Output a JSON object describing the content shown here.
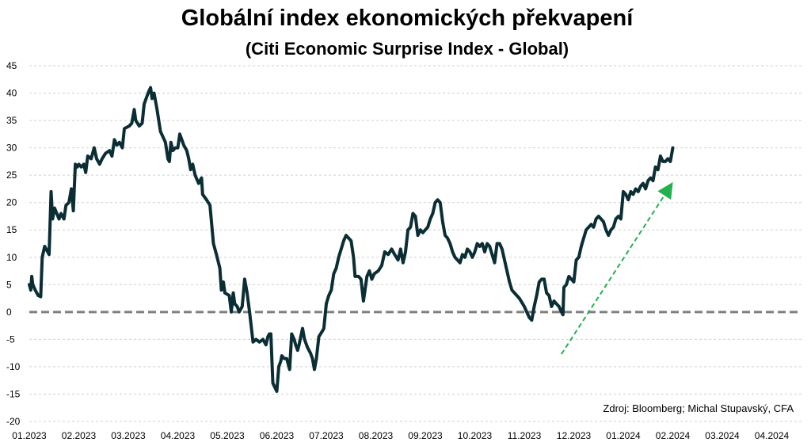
{
  "chart_data": {
    "type": "line",
    "title": "Globální index ekonomických překvapení",
    "subtitle": "(Citi Economic Surprise Index - Global)",
    "source": "Zdroj: Bloomberg; Michal Stupavský, CFA",
    "xlabel": "",
    "ylabel": "",
    "ylim": [
      -20,
      45
    ],
    "yticks": [
      -20,
      -15,
      -10,
      -5,
      0,
      5,
      10,
      15,
      20,
      25,
      30,
      35,
      40,
      45
    ],
    "xlim": [
      0,
      15.6
    ],
    "xticks": [
      {
        "x": 0,
        "label": "01.2023"
      },
      {
        "x": 1,
        "label": "02.2023"
      },
      {
        "x": 2,
        "label": "03.2023"
      },
      {
        "x": 3,
        "label": "04.2023"
      },
      {
        "x": 4,
        "label": "05.2023"
      },
      {
        "x": 5,
        "label": "06.2023"
      },
      {
        "x": 6,
        "label": "07.2023"
      },
      {
        "x": 7,
        "label": "08.2023"
      },
      {
        "x": 8,
        "label": "09.2023"
      },
      {
        "x": 9,
        "label": "10.2023"
      },
      {
        "x": 10,
        "label": "11.2023"
      },
      {
        "x": 11,
        "label": "12.2023"
      },
      {
        "x": 12,
        "label": "01.2024"
      },
      {
        "x": 13,
        "label": "02.2024"
      },
      {
        "x": 14,
        "label": "03.2024"
      },
      {
        "x": 15,
        "label": "04.2024"
      }
    ],
    "grid": true,
    "series": [
      {
        "color": "#0b2e35",
        "points": [
          [
            0.0,
            5.0
          ],
          [
            0.03,
            4.0
          ],
          [
            0.05,
            6.5
          ],
          [
            0.07,
            5.0
          ],
          [
            0.12,
            4.0
          ],
          [
            0.18,
            3.0
          ],
          [
            0.23,
            2.8
          ],
          [
            0.26,
            10.0
          ],
          [
            0.31,
            12.0
          ],
          [
            0.4,
            10.5
          ],
          [
            0.44,
            22.0
          ],
          [
            0.47,
            17.0
          ],
          [
            0.51,
            19.0
          ],
          [
            0.6,
            17.0
          ],
          [
            0.64,
            18.0
          ],
          [
            0.7,
            17.0
          ],
          [
            0.74,
            19.5
          ],
          [
            0.8,
            20.0
          ],
          [
            0.85,
            22.5
          ],
          [
            0.89,
            18.5
          ],
          [
            0.93,
            27.0
          ],
          [
            0.97,
            26.5
          ],
          [
            1.0,
            27.0
          ],
          [
            1.05,
            26.5
          ],
          [
            1.1,
            27.0
          ],
          [
            1.14,
            25.5
          ],
          [
            1.18,
            28.5
          ],
          [
            1.25,
            28.0
          ],
          [
            1.31,
            30.0
          ],
          [
            1.36,
            28.0
          ],
          [
            1.42,
            27.0
          ],
          [
            1.47,
            28.0
          ],
          [
            1.54,
            29.0
          ],
          [
            1.62,
            29.5
          ],
          [
            1.67,
            28.5
          ],
          [
            1.72,
            31.5
          ],
          [
            1.77,
            30.5
          ],
          [
            1.82,
            31.0
          ],
          [
            1.88,
            30.0
          ],
          [
            1.92,
            33.5
          ],
          [
            2.02,
            34.0
          ],
          [
            2.07,
            34.5
          ],
          [
            2.12,
            37.0
          ],
          [
            2.15,
            35.0
          ],
          [
            2.22,
            34.0
          ],
          [
            2.28,
            34.5
          ],
          [
            2.32,
            38.0
          ],
          [
            2.4,
            40.0
          ],
          [
            2.45,
            41.0
          ],
          [
            2.48,
            39.0
          ],
          [
            2.52,
            40.0
          ],
          [
            2.58,
            37.0
          ],
          [
            2.65,
            33.0
          ],
          [
            2.75,
            31.0
          ],
          [
            2.8,
            28.0
          ],
          [
            2.83,
            27.5
          ],
          [
            2.86,
            31.0
          ],
          [
            2.9,
            29.5
          ],
          [
            2.95,
            30.0
          ],
          [
            3.0,
            30.0
          ],
          [
            3.04,
            32.5
          ],
          [
            3.12,
            30.5
          ],
          [
            3.18,
            29.5
          ],
          [
            3.22,
            28.0
          ],
          [
            3.26,
            26.0
          ],
          [
            3.3,
            27.0
          ],
          [
            3.35,
            25.0
          ],
          [
            3.42,
            23.5
          ],
          [
            3.48,
            24.5
          ],
          [
            3.5,
            21.5
          ],
          [
            3.58,
            20.5
          ],
          [
            3.65,
            19.5
          ],
          [
            3.72,
            12.5
          ],
          [
            3.78,
            10.5
          ],
          [
            3.85,
            8.0
          ],
          [
            3.88,
            4.0
          ],
          [
            3.92,
            5.5
          ],
          [
            3.95,
            3.5
          ],
          [
            4.04,
            3.0
          ],
          [
            4.08,
            0.0
          ],
          [
            4.12,
            3.5
          ],
          [
            4.15,
            1.5
          ],
          [
            4.2,
            1.0
          ],
          [
            4.24,
            0.0
          ],
          [
            4.3,
            1.0
          ],
          [
            4.35,
            6.0
          ],
          [
            4.4,
            3.5
          ],
          [
            4.45,
            0.0
          ],
          [
            4.52,
            -5.5
          ],
          [
            4.58,
            -5.0
          ],
          [
            4.65,
            -5.5
          ],
          [
            4.72,
            -5.0
          ],
          [
            4.78,
            -6.0
          ],
          [
            4.82,
            -4.5
          ],
          [
            4.85,
            -4.0
          ],
          [
            4.88,
            -4.0
          ],
          [
            4.92,
            -13.0
          ],
          [
            5.0,
            -14.5
          ],
          [
            5.04,
            -10.0
          ],
          [
            5.08,
            -9.0
          ],
          [
            5.1,
            -8.0
          ],
          [
            5.15,
            -8.5
          ],
          [
            5.2,
            -8.5
          ],
          [
            5.26,
            -10.5
          ],
          [
            5.3,
            -4.0
          ],
          [
            5.35,
            -5.0
          ],
          [
            5.38,
            -6.0
          ],
          [
            5.42,
            -7.0
          ],
          [
            5.45,
            -6.0
          ],
          [
            5.52,
            -3.0
          ],
          [
            5.56,
            -5.0
          ],
          [
            5.62,
            -6.5
          ],
          [
            5.68,
            -7.5
          ],
          [
            5.72,
            -8.5
          ],
          [
            5.76,
            -10.5
          ],
          [
            5.8,
            -8.5
          ],
          [
            5.85,
            -4.5
          ],
          [
            5.92,
            -3.5
          ],
          [
            5.95,
            -3.0
          ],
          [
            6.0,
            1.5
          ],
          [
            6.05,
            3.0
          ],
          [
            6.1,
            4.0
          ],
          [
            6.15,
            7.0
          ],
          [
            6.2,
            8.0
          ],
          [
            6.25,
            10.0
          ],
          [
            6.3,
            11.5
          ],
          [
            6.35,
            13.0
          ],
          [
            6.4,
            14.0
          ],
          [
            6.5,
            13.0
          ],
          [
            6.55,
            10.0
          ],
          [
            6.58,
            6.5
          ],
          [
            6.65,
            6.5
          ],
          [
            6.7,
            6.0
          ],
          [
            6.75,
            2.0
          ],
          [
            6.82,
            6.5
          ],
          [
            6.87,
            7.5
          ],
          [
            6.92,
            6.0
          ],
          [
            6.97,
            7.0
          ],
          [
            7.05,
            7.5
          ],
          [
            7.12,
            8.5
          ],
          [
            7.18,
            11.0
          ],
          [
            7.25,
            10.5
          ],
          [
            7.32,
            11.5
          ],
          [
            7.38,
            10.5
          ],
          [
            7.45,
            9.5
          ],
          [
            7.5,
            11.5
          ],
          [
            7.55,
            9.0
          ],
          [
            7.6,
            11.0
          ],
          [
            7.65,
            15.0
          ],
          [
            7.7,
            15.5
          ],
          [
            7.75,
            18.0
          ],
          [
            7.8,
            17.5
          ],
          [
            7.85,
            14.0
          ],
          [
            7.9,
            15.0
          ],
          [
            7.95,
            14.5
          ],
          [
            8.0,
            15.0
          ],
          [
            8.05,
            15.5
          ],
          [
            8.1,
            17.0
          ],
          [
            8.15,
            18.0
          ],
          [
            8.2,
            20.0
          ],
          [
            8.25,
            20.5
          ],
          [
            8.3,
            20.0
          ],
          [
            8.35,
            16.5
          ],
          [
            8.4,
            14.0
          ],
          [
            8.45,
            13.5
          ],
          [
            8.5,
            12.5
          ],
          [
            8.55,
            11.0
          ],
          [
            8.6,
            10.0
          ],
          [
            8.65,
            9.5
          ],
          [
            8.7,
            9.0
          ],
          [
            8.75,
            10.5
          ],
          [
            8.8,
            10.0
          ],
          [
            8.85,
            11.5
          ],
          [
            8.9,
            11.0
          ],
          [
            8.95,
            10.0
          ],
          [
            9.0,
            11.0
          ],
          [
            9.05,
            12.5
          ],
          [
            9.1,
            12.0
          ],
          [
            9.15,
            12.5
          ],
          [
            9.2,
            11.0
          ],
          [
            9.25,
            12.5
          ],
          [
            9.3,
            12.0
          ],
          [
            9.35,
            10.5
          ],
          [
            9.4,
            9.0
          ],
          [
            9.45,
            12.5
          ],
          [
            9.5,
            12.5
          ],
          [
            9.55,
            11.5
          ],
          [
            9.6,
            9.5
          ],
          [
            9.7,
            5.5
          ],
          [
            9.75,
            4.0
          ],
          [
            9.8,
            3.5
          ],
          [
            9.85,
            3.0
          ],
          [
            9.9,
            2.5
          ],
          [
            10.0,
            1.0
          ],
          [
            10.05,
            0.0
          ],
          [
            10.1,
            -1.0
          ],
          [
            10.15,
            -1.5
          ],
          [
            10.2,
            1.0
          ],
          [
            10.25,
            3.0
          ],
          [
            10.3,
            5.5
          ],
          [
            10.35,
            6.0
          ],
          [
            10.4,
            6.0
          ],
          [
            10.45,
            3.5
          ],
          [
            10.5,
            3.0
          ],
          [
            10.55,
            1.0
          ],
          [
            10.6,
            2.0
          ],
          [
            10.65,
            1.5
          ],
          [
            10.7,
            1.0
          ],
          [
            10.75,
            0.0
          ],
          [
            10.78,
            -0.5
          ],
          [
            10.8,
            4.5
          ],
          [
            10.85,
            5.0
          ],
          [
            10.9,
            6.5
          ],
          [
            11.0,
            5.5
          ],
          [
            11.05,
            9.5
          ],
          [
            11.1,
            10.0
          ],
          [
            11.15,
            12.0
          ],
          [
            11.2,
            13.5
          ],
          [
            11.25,
            15.0
          ],
          [
            11.3,
            15.5
          ],
          [
            11.35,
            16.0
          ],
          [
            11.4,
            15.5
          ],
          [
            11.45,
            17.0
          ],
          [
            11.5,
            17.5
          ],
          [
            11.55,
            17.0
          ],
          [
            11.6,
            16.5
          ],
          [
            11.65,
            15.0
          ],
          [
            11.7,
            14.0
          ],
          [
            11.75,
            15.0
          ],
          [
            11.8,
            15.5
          ],
          [
            11.85,
            17.0
          ],
          [
            11.9,
            17.5
          ],
          [
            11.95,
            17.0
          ],
          [
            12.0,
            22.0
          ],
          [
            12.05,
            21.5
          ],
          [
            12.1,
            20.5
          ],
          [
            12.15,
            22.0
          ],
          [
            12.2,
            21.5
          ],
          [
            12.25,
            22.5
          ],
          [
            12.3,
            22.0
          ],
          [
            12.35,
            23.0
          ],
          [
            12.4,
            23.5
          ],
          [
            12.45,
            22.5
          ],
          [
            12.5,
            24.0
          ],
          [
            12.55,
            24.5
          ],
          [
            12.6,
            24.0
          ],
          [
            12.65,
            26.5
          ],
          [
            12.7,
            26.0
          ],
          [
            12.75,
            28.5
          ],
          [
            12.8,
            27.5
          ],
          [
            12.85,
            27.5
          ],
          [
            12.9,
            28.0
          ],
          [
            12.95,
            27.5
          ],
          [
            13.0,
            30.0
          ]
        ]
      }
    ],
    "zero_line": {
      "y": 0,
      "style": "dashed",
      "color": "#7f7f7f"
    },
    "trend_arrow": {
      "from": [
        10.75,
        -7.7
      ],
      "to": [
        12.95,
        23.0
      ],
      "color": "#22b14c",
      "style": "dashed"
    }
  }
}
